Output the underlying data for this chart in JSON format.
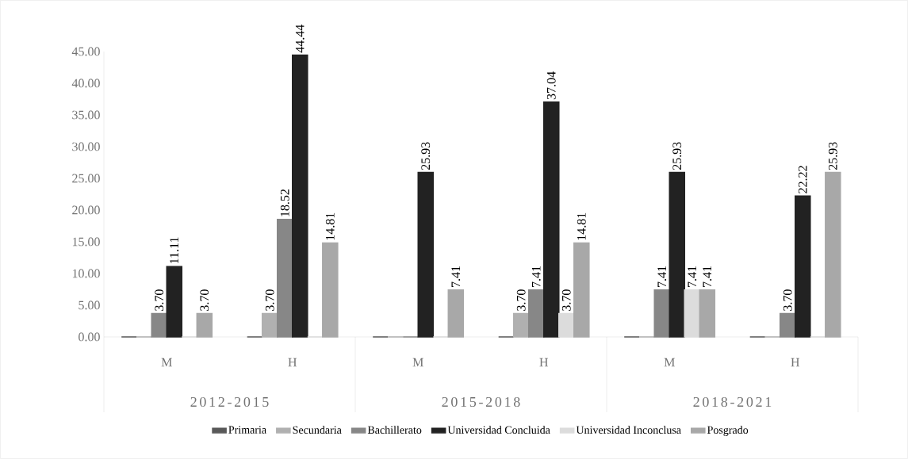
{
  "chart_data": {
    "type": "bar",
    "categories": [
      "M",
      "H",
      "M",
      "H",
      "M",
      "H"
    ],
    "annotations": [
      "2012-2015",
      "2015-2018",
      "2018-2021"
    ],
    "series": [
      {
        "name": "Primaria",
        "color": "#595959",
        "values": [
          0,
          0,
          0,
          0,
          0,
          0
        ],
        "value_labels": [
          null,
          null,
          null,
          null,
          null,
          null
        ]
      },
      {
        "name": "Secundaria",
        "color": "#b0b0b0",
        "values": [
          0,
          3.7,
          0,
          3.7,
          0,
          0
        ],
        "value_labels": [
          null,
          "3.70",
          null,
          "3.70",
          null,
          null
        ]
      },
      {
        "name": "Bachillerato",
        "color": "#878787",
        "values": [
          3.7,
          18.52,
          0,
          7.41,
          7.41,
          3.7
        ],
        "value_labels": [
          "3.70",
          "18.52",
          null,
          "7.41",
          "7.41",
          "3.70"
        ]
      },
      {
        "name": "Universidad Concluida",
        "color": "#222222",
        "values": [
          11.11,
          44.44,
          25.93,
          37.04,
          25.93,
          22.22
        ],
        "value_labels": [
          "11.11",
          "44.44",
          "25.93",
          "37.04",
          "25.93",
          "22.22"
        ]
      },
      {
        "name": "Universidad Inconclusa",
        "color": "#dcdcdc",
        "values": [
          0,
          0,
          0,
          3.7,
          7.41,
          0
        ],
        "value_labels": [
          null,
          null,
          null,
          "3.70",
          "7.41",
          null
        ]
      },
      {
        "name": "Posgrado",
        "color": "#a8a8a8",
        "values": [
          3.7,
          14.81,
          7.41,
          14.81,
          7.41,
          25.93
        ],
        "value_labels": [
          "3.70",
          "14.81",
          "7.41",
          "14.81",
          "7.41",
          "25.93"
        ]
      }
    ],
    "ylim": [
      0,
      45
    ],
    "yticks": [
      {
        "value": 0,
        "label": "0.00"
      },
      {
        "value": 5,
        "label": "5.00"
      },
      {
        "value": 10,
        "label": "10.00"
      },
      {
        "value": 15,
        "label": "15.00"
      },
      {
        "value": 20,
        "label": "20.00"
      },
      {
        "value": 25,
        "label": "25.00"
      },
      {
        "value": 30,
        "label": "30.00"
      },
      {
        "value": 35,
        "label": "35.00"
      },
      {
        "value": 40,
        "label": "40.00"
      },
      {
        "value": 45,
        "label": "45.00"
      }
    ],
    "grid": false,
    "legend": "bottom"
  }
}
